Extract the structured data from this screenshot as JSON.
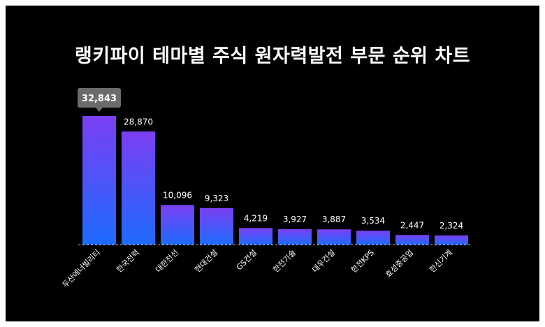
{
  "chart_data": {
    "type": "bar",
    "title": "랭키파이 테마별 주식 원자력발전 부문 순위 차트",
    "categories": [
      "두산에너빌리티",
      "한국전력",
      "대한전선",
      "현대건설",
      "GS건설",
      "한전기술",
      "대우건설",
      "한전KPS",
      "효성중공업",
      "한신기계"
    ],
    "values": [
      32843,
      28870,
      10096,
      9323,
      4219,
      3927,
      3887,
      3534,
      2447,
      2324
    ],
    "value_labels": [
      "32,843",
      "28,870",
      "10,096",
      "9,323",
      "4,219",
      "3,927",
      "3,887",
      "3,534",
      "2,447",
      "2,324"
    ],
    "highlighted_index": 0,
    "xlabel": "",
    "ylabel": "",
    "ylim": [
      0,
      32843
    ],
    "grid": false,
    "legend": "none",
    "colors": {
      "background": "#000000",
      "bar_top": "#7b3ff2",
      "bar_bottom": "#1e6bff",
      "tooltip_bg": "#6b6b6b",
      "text": "#ffffff"
    }
  }
}
